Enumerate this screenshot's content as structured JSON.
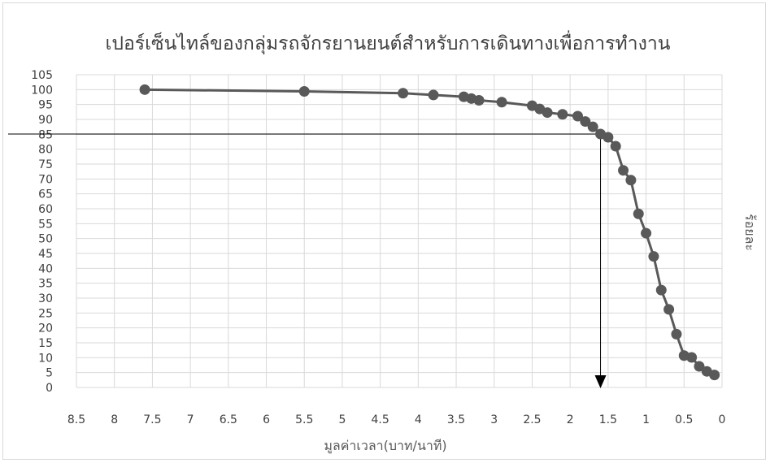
{
  "chart_data": {
    "type": "scatter",
    "title": "เปอร์เซ็นไทล์ของกลุ่มรถจักรยานยนต์สำหรับการเดินทางเพื่อการทำงาน",
    "xlabel": "มูลค่าเวลา(บาท/นาที)",
    "ylabel": "ร้อยละ",
    "x_reversed": true,
    "xlim": [
      0,
      8.5
    ],
    "ylim": [
      0,
      105
    ],
    "x_ticks": [
      "0",
      "0.5",
      "1",
      "1.5",
      "2",
      "2.5",
      "3",
      "3.5",
      "4",
      "4.5",
      "5",
      "5.5",
      "6",
      "6.5",
      "7",
      "7.5",
      "8",
      "8.5"
    ],
    "y_ticks": [
      "0",
      "5",
      "10",
      "15",
      "20",
      "25",
      "30",
      "35",
      "40",
      "45",
      "50",
      "55",
      "60",
      "65",
      "70",
      "75",
      "80",
      "85",
      "90",
      "95",
      "100",
      "105"
    ],
    "grid": true,
    "line_color": "#595959",
    "marker_color": "#595959",
    "grid_color": "#d9d9d9",
    "series": [
      {
        "points": [
          {
            "x": 7.6,
            "y": 100
          },
          {
            "x": 5.5,
            "y": 99.4
          },
          {
            "x": 4.2,
            "y": 98.8
          },
          {
            "x": 3.8,
            "y": 98.2
          },
          {
            "x": 3.4,
            "y": 97.6
          },
          {
            "x": 3.3,
            "y": 97.0
          },
          {
            "x": 3.2,
            "y": 96.4
          },
          {
            "x": 2.9,
            "y": 95.8
          },
          {
            "x": 2.5,
            "y": 94.6
          },
          {
            "x": 2.4,
            "y": 93.5
          },
          {
            "x": 2.3,
            "y": 92.3
          },
          {
            "x": 2.1,
            "y": 91.7
          },
          {
            "x": 1.9,
            "y": 91.1
          },
          {
            "x": 1.8,
            "y": 89.3
          },
          {
            "x": 1.7,
            "y": 87.5
          },
          {
            "x": 1.6,
            "y": 85.1
          },
          {
            "x": 1.5,
            "y": 84.0
          },
          {
            "x": 1.4,
            "y": 81.0
          },
          {
            "x": 1.3,
            "y": 72.9
          },
          {
            "x": 1.2,
            "y": 69.6
          },
          {
            "x": 1.1,
            "y": 58.3
          },
          {
            "x": 1.0,
            "y": 51.8
          },
          {
            "x": 0.9,
            "y": 44.0
          },
          {
            "x": 0.8,
            "y": 32.7
          },
          {
            "x": 0.7,
            "y": 26.2
          },
          {
            "x": 0.6,
            "y": 17.9
          },
          {
            "x": 0.5,
            "y": 10.7
          },
          {
            "x": 0.4,
            "y": 10.1
          },
          {
            "x": 0.3,
            "y": 7.1
          },
          {
            "x": 0.2,
            "y": 5.4
          },
          {
            "x": 0.1,
            "y": 4.2
          }
        ]
      }
    ],
    "annotation": {
      "description": "reference lines from y-axis at the 85th percentile to the curve, then an arrow down to the x-axis",
      "x": 1.6,
      "y": 85.1
    }
  }
}
